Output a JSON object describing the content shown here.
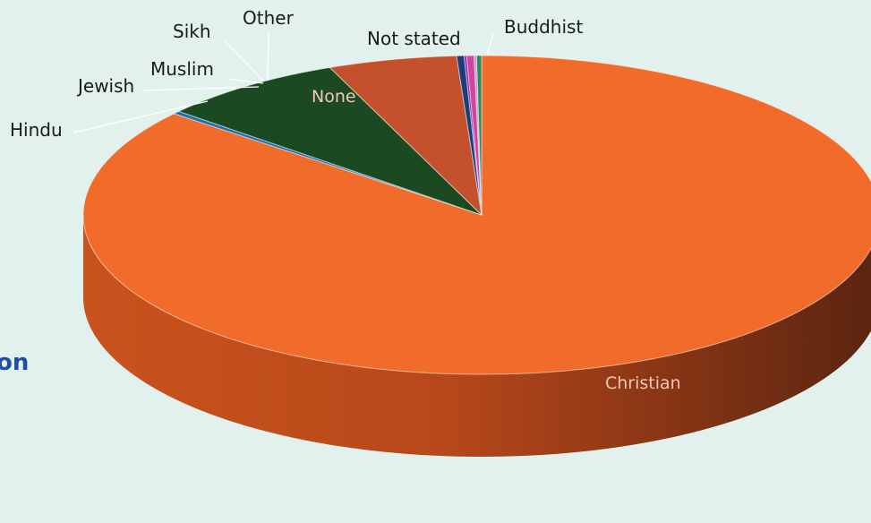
{
  "page": {
    "side_fragment": "on"
  },
  "chart_data": {
    "type": "pie",
    "style": "3d",
    "title": "",
    "labels": [
      "Christian",
      "Buddhist",
      "Not stated",
      "None",
      "Other",
      "Sikh",
      "Muslim",
      "Jewish",
      "Hindu"
    ],
    "values": [
      85.7,
      0.3,
      7.5,
      5.2,
      0.3,
      0.1,
      0.3,
      0.1,
      0.2
    ],
    "value_unit": "%",
    "colors": {
      "Christian": "#f16b2a",
      "Buddhist": "#1f6fb0",
      "Not stated": "#1b4a22",
      "None": "#c4512c",
      "Other": "#1b3d7a",
      "Sikh": "#8a2fb0",
      "Muslim": "#d1459e",
      "Jewish": "#c79ad6",
      "Hindu": "#2e8b57"
    },
    "inside_labels": [
      "None",
      "Christian"
    ],
    "label_color_inside": "#f4c7b3"
  }
}
